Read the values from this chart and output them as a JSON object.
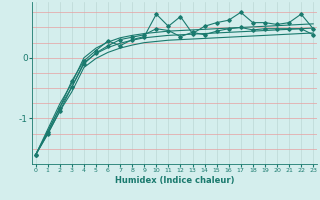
{
  "xlabel": "Humidex (Indice chaleur)",
  "x_values": [
    0,
    1,
    2,
    3,
    4,
    5,
    6,
    7,
    8,
    9,
    10,
    11,
    12,
    13,
    14,
    15,
    16,
    17,
    18,
    19,
    20,
    21,
    22,
    23
  ],
  "y_top": [
    -1.6,
    -1.22,
    -0.82,
    -0.38,
    -0.05,
    0.12,
    0.28,
    0.2,
    0.3,
    0.35,
    0.72,
    0.52,
    0.68,
    0.4,
    0.52,
    0.58,
    0.62,
    0.75,
    0.58,
    0.58,
    0.55,
    0.58,
    0.72,
    0.48
  ],
  "y_mid": [
    -1.6,
    -1.25,
    -0.88,
    -0.48,
    -0.1,
    0.08,
    0.2,
    0.3,
    0.34,
    0.38,
    0.48,
    0.45,
    0.35,
    0.42,
    0.38,
    0.44,
    0.48,
    0.5,
    0.46,
    0.48,
    0.48,
    0.48,
    0.48,
    0.38
  ],
  "y_s1": [
    -1.6,
    -1.18,
    -0.76,
    -0.42,
    0.0,
    0.16,
    0.26,
    0.33,
    0.37,
    0.4,
    0.42,
    0.44,
    0.45,
    0.46,
    0.47,
    0.48,
    0.49,
    0.5,
    0.51,
    0.52,
    0.53,
    0.54,
    0.55,
    0.56
  ],
  "y_s2": [
    -1.6,
    -1.22,
    -0.82,
    -0.48,
    -0.08,
    0.07,
    0.17,
    0.24,
    0.29,
    0.33,
    0.35,
    0.37,
    0.38,
    0.39,
    0.4,
    0.41,
    0.42,
    0.43,
    0.44,
    0.45,
    0.46,
    0.47,
    0.48,
    0.49
  ],
  "y_s3": [
    -1.6,
    -1.26,
    -0.88,
    -0.56,
    -0.16,
    -0.01,
    0.09,
    0.16,
    0.21,
    0.25,
    0.27,
    0.29,
    0.3,
    0.31,
    0.32,
    0.33,
    0.34,
    0.35,
    0.36,
    0.37,
    0.38,
    0.39,
    0.4,
    0.41
  ],
  "bg_color": "#d4eeed",
  "line_color": "#1a7a6e",
  "grid_color_v": "#bcd8d6",
  "grid_color_h": "#e8a0a0",
  "ylim": [
    -1.75,
    0.92
  ],
  "xlim": [
    -0.3,
    23.3
  ],
  "yticks": [
    -1,
    0
  ],
  "figsize": [
    3.2,
    2.0
  ],
  "dpi": 100
}
